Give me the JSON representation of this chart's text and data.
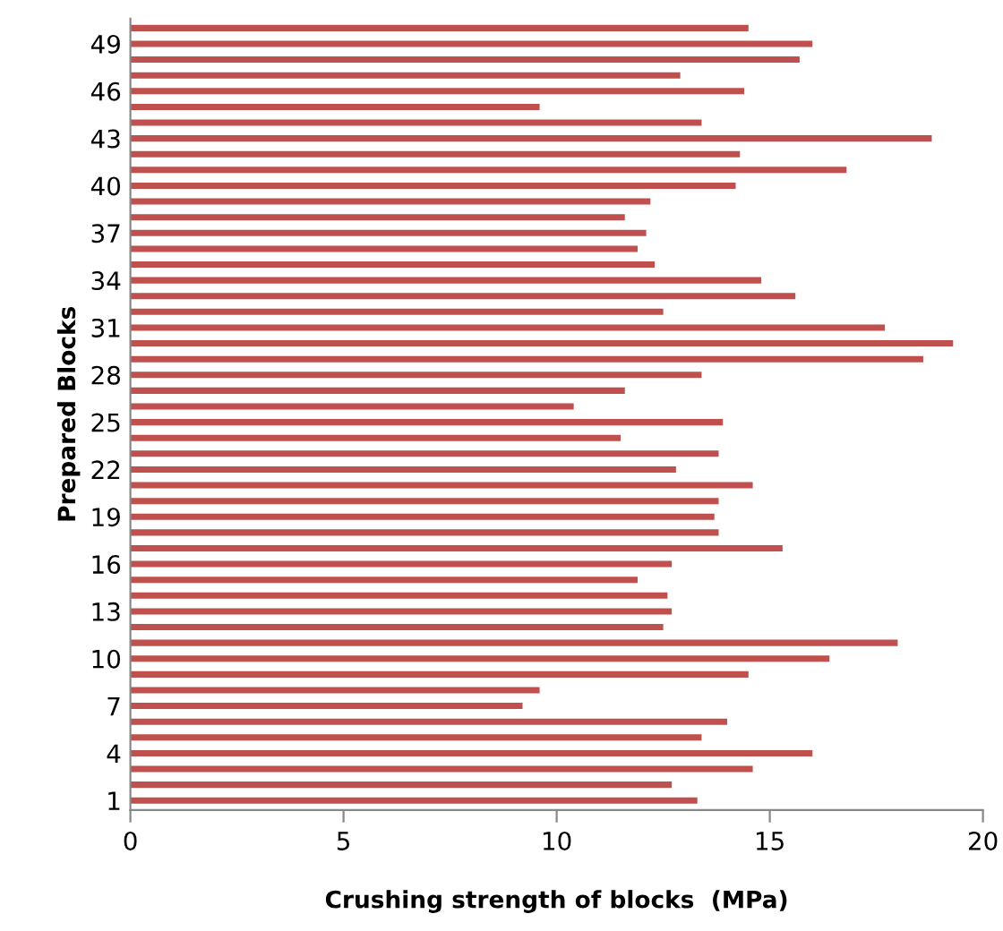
{
  "chart_data": {
    "type": "bar",
    "orientation": "horizontal",
    "xlabel": "Crushing strength of blocks  (MPa)",
    "ylabel": "Prepared Blocks",
    "categories": [
      null,
      "49",
      null,
      null,
      "46",
      null,
      null,
      "43",
      null,
      null,
      "40",
      null,
      null,
      "37",
      null,
      null,
      "34",
      null,
      null,
      "31",
      null,
      null,
      "28",
      null,
      null,
      "25",
      null,
      null,
      "22",
      null,
      null,
      "19",
      null,
      null,
      "16",
      null,
      null,
      "13",
      null,
      null,
      "10",
      null,
      null,
      "7",
      null,
      null,
      "4",
      null,
      null,
      "1"
    ],
    "values": [
      14.5,
      16.0,
      15.7,
      12.9,
      14.4,
      9.6,
      13.4,
      18.8,
      14.3,
      16.8,
      14.2,
      12.2,
      11.6,
      12.1,
      11.9,
      12.3,
      14.8,
      15.6,
      12.5,
      17.7,
      19.3,
      18.6,
      13.4,
      11.6,
      10.4,
      13.9,
      11.5,
      13.8,
      12.8,
      14.6,
      13.8,
      13.7,
      13.8,
      15.3,
      12.7,
      11.9,
      12.6,
      12.7,
      12.5,
      18.0,
      16.4,
      14.5,
      9.6,
      9.2,
      14.0,
      13.4,
      16.0,
      14.6,
      12.7,
      13.3
    ],
    "color": "#c0504d",
    "xlim": [
      0,
      20
    ],
    "xticks": [
      0,
      5,
      10,
      15,
      20
    ],
    "grid": false,
    "legend": false
  }
}
